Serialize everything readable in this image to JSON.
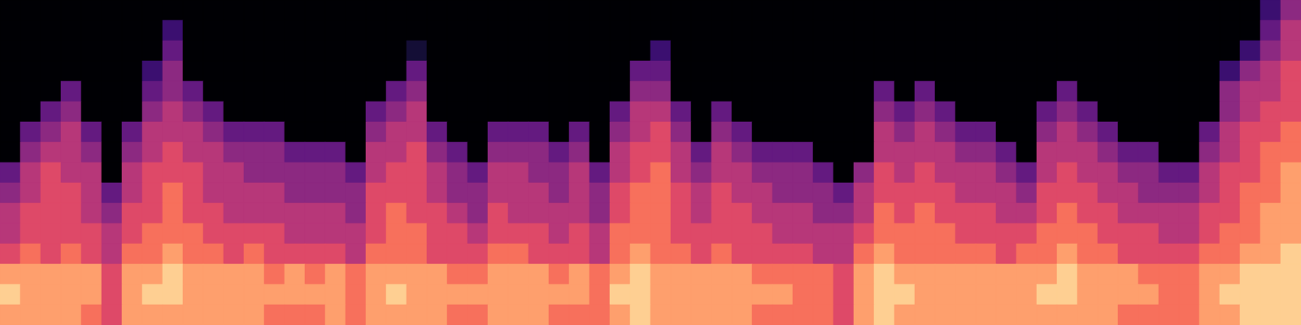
{
  "chart_data": {
    "type": "heatmap",
    "color": "magma",
    "color_range": [
      0,
      10
    ],
    "tick_labels": false,
    "cells": [
      [
        0,
        0,
        0,
        0,
        0,
        0,
        0,
        0,
        0,
        0,
        0,
        0,
        0,
        0,
        0,
        0,
        0,
        0,
        0,
        0,
        0,
        0,
        0,
        0,
        0,
        0,
        0,
        0,
        0,
        0,
        0,
        0,
        0,
        0,
        0,
        0,
        0,
        0,
        0,
        0,
        0,
        0,
        0,
        0,
        0,
        0,
        0,
        0,
        0,
        0,
        0,
        0,
        0,
        0,
        0,
        0,
        0,
        0,
        0,
        0,
        0,
        0,
        2,
        4
      ],
      [
        0,
        0,
        0,
        0,
        0,
        0,
        0,
        0,
        2,
        0,
        0,
        0,
        0,
        0,
        0,
        0,
        0,
        0,
        0,
        0,
        0,
        0,
        0,
        0,
        0,
        0,
        0,
        0,
        0,
        0,
        0,
        0,
        0,
        0,
        0,
        0,
        0,
        0,
        0,
        0,
        0,
        0,
        0,
        0,
        0,
        0,
        0,
        0,
        0,
        0,
        0,
        0,
        0,
        0,
        0,
        0,
        0,
        0,
        0,
        0,
        0,
        0,
        3,
        5
      ],
      [
        0,
        0,
        0,
        0,
        0,
        0,
        0,
        0,
        3,
        0,
        0,
        0,
        0,
        0,
        0,
        0,
        0,
        0,
        0,
        0,
        1,
        0,
        0,
        0,
        0,
        0,
        0,
        0,
        0,
        0,
        0,
        0,
        2,
        0,
        0,
        0,
        0,
        0,
        0,
        0,
        0,
        0,
        0,
        0,
        0,
        0,
        0,
        0,
        0,
        0,
        0,
        0,
        0,
        0,
        0,
        0,
        0,
        0,
        0,
        0,
        0,
        2,
        4,
        5
      ],
      [
        0,
        0,
        0,
        0,
        0,
        0,
        0,
        2,
        4,
        0,
        0,
        0,
        0,
        0,
        0,
        0,
        0,
        0,
        0,
        0,
        3,
        0,
        0,
        0,
        0,
        0,
        0,
        0,
        0,
        0,
        0,
        3,
        3,
        0,
        0,
        0,
        0,
        0,
        0,
        0,
        0,
        0,
        0,
        0,
        0,
        0,
        0,
        0,
        0,
        0,
        0,
        0,
        0,
        0,
        0,
        0,
        0,
        0,
        0,
        0,
        2,
        4,
        5,
        6
      ],
      [
        0,
        0,
        0,
        3,
        0,
        0,
        0,
        3,
        4,
        3,
        0,
        0,
        0,
        0,
        0,
        0,
        0,
        0,
        0,
        3,
        4,
        0,
        0,
        0,
        0,
        0,
        0,
        0,
        0,
        0,
        0,
        4,
        4,
        0,
        0,
        0,
        0,
        0,
        0,
        0,
        0,
        0,
        0,
        3,
        0,
        3,
        0,
        0,
        0,
        0,
        0,
        0,
        3,
        0,
        0,
        0,
        0,
        0,
        0,
        0,
        4,
        5,
        5,
        6
      ],
      [
        0,
        0,
        3,
        4,
        0,
        0,
        0,
        4,
        5,
        4,
        3,
        0,
        0,
        0,
        0,
        0,
        0,
        0,
        3,
        4,
        5,
        0,
        0,
        0,
        0,
        0,
        0,
        0,
        0,
        0,
        3,
        5,
        5,
        3,
        0,
        3,
        0,
        0,
        0,
        0,
        0,
        0,
        0,
        4,
        3,
        4,
        3,
        0,
        0,
        0,
        0,
        3,
        4,
        3,
        0,
        0,
        0,
        0,
        0,
        0,
        4,
        5,
        6,
        6
      ],
      [
        0,
        3,
        4,
        5,
        3,
        0,
        3,
        5,
        5,
        5,
        4,
        3,
        3,
        3,
        0,
        0,
        0,
        0,
        4,
        5,
        5,
        3,
        0,
        0,
        3,
        3,
        3,
        0,
        3,
        0,
        4,
        5,
        6,
        4,
        0,
        4,
        3,
        0,
        0,
        0,
        0,
        0,
        0,
        5,
        4,
        5,
        4,
        3,
        3,
        0,
        0,
        4,
        5,
        4,
        3,
        0,
        0,
        0,
        0,
        3,
        5,
        6,
        6,
        7
      ],
      [
        0,
        4,
        5,
        5,
        4,
        0,
        4,
        5,
        6,
        5,
        5,
        4,
        4,
        4,
        3,
        3,
        3,
        0,
        5,
        5,
        6,
        4,
        3,
        0,
        4,
        4,
        4,
        3,
        4,
        0,
        5,
        6,
        6,
        5,
        3,
        5,
        4,
        3,
        3,
        3,
        0,
        0,
        0,
        5,
        5,
        5,
        5,
        4,
        4,
        3,
        0,
        5,
        5,
        5,
        4,
        3,
        3,
        0,
        0,
        4,
        5,
        6,
        7,
        7
      ],
      [
        3,
        5,
        6,
        5,
        5,
        0,
        5,
        6,
        6,
        6,
        5,
        5,
        4,
        4,
        4,
        4,
        4,
        3,
        5,
        6,
        6,
        5,
        4,
        3,
        5,
        5,
        4,
        4,
        5,
        3,
        5,
        6,
        7,
        5,
        4,
        5,
        5,
        4,
        4,
        4,
        3,
        0,
        4,
        6,
        5,
        6,
        5,
        5,
        5,
        4,
        3,
        5,
        6,
        5,
        5,
        4,
        4,
        3,
        3,
        5,
        6,
        6,
        7,
        8
      ],
      [
        4,
        5,
        6,
        6,
        5,
        3,
        5,
        6,
        7,
        6,
        5,
        5,
        5,
        5,
        4,
        4,
        4,
        4,
        6,
        6,
        6,
        5,
        4,
        4,
        5,
        5,
        5,
        4,
        5,
        4,
        6,
        7,
        7,
        6,
        5,
        6,
        5,
        5,
        4,
        4,
        4,
        3,
        5,
        6,
        6,
        6,
        6,
        5,
        5,
        5,
        4,
        6,
        6,
        6,
        5,
        5,
        4,
        4,
        4,
        5,
        6,
        7,
        7,
        8
      ],
      [
        5,
        6,
        6,
        6,
        5,
        4,
        6,
        6,
        7,
        6,
        6,
        5,
        5,
        5,
        5,
        5,
        5,
        4,
        6,
        7,
        6,
        6,
        5,
        4,
        6,
        5,
        5,
        5,
        5,
        4,
        6,
        7,
        7,
        6,
        5,
        6,
        6,
        5,
        5,
        5,
        4,
        4,
        5,
        7,
        6,
        7,
        6,
        6,
        6,
        5,
        5,
        6,
        7,
        6,
        6,
        5,
        5,
        5,
        5,
        6,
        6,
        7,
        8,
        8
      ],
      [
        5,
        6,
        6,
        6,
        6,
        5,
        6,
        7,
        7,
        7,
        6,
        6,
        6,
        6,
        5,
        5,
        5,
        5,
        6,
        7,
        7,
        6,
        6,
        5,
        6,
        6,
        6,
        5,
        6,
        5,
        7,
        7,
        7,
        6,
        6,
        6,
        6,
        6,
        5,
        5,
        5,
        5,
        6,
        7,
        7,
        7,
        7,
        6,
        6,
        6,
        6,
        7,
        7,
        7,
        6,
        6,
        6,
        5,
        5,
        6,
        7,
        7,
        8,
        8
      ],
      [
        6,
        7,
        6,
        7,
        6,
        5,
        7,
        7,
        8,
        7,
        7,
        6,
        7,
        6,
        6,
        6,
        6,
        5,
        7,
        7,
        7,
        6,
        6,
        6,
        7,
        7,
        6,
        6,
        6,
        5,
        7,
        8,
        7,
        7,
        6,
        7,
        6,
        6,
        6,
        6,
        5,
        5,
        7,
        8,
        7,
        7,
        7,
        7,
        7,
        6,
        7,
        7,
        8,
        7,
        7,
        6,
        6,
        6,
        6,
        7,
        7,
        8,
        8,
        9
      ],
      [
        8,
        8,
        8,
        8,
        8,
        6,
        8,
        8,
        9,
        8,
        8,
        8,
        8,
        7,
        8,
        7,
        8,
        7,
        8,
        8,
        8,
        8,
        7,
        7,
        8,
        8,
        8,
        7,
        8,
        7,
        8,
        9,
        8,
        8,
        8,
        8,
        8,
        7,
        7,
        7,
        7,
        6,
        8,
        9,
        8,
        8,
        8,
        8,
        8,
        8,
        8,
        8,
        9,
        8,
        8,
        8,
        7,
        7,
        7,
        8,
        8,
        9,
        9,
        9
      ],
      [
        9,
        8,
        8,
        8,
        8,
        6,
        8,
        9,
        9,
        8,
        8,
        8,
        8,
        8,
        8,
        8,
        8,
        7,
        8,
        9,
        8,
        8,
        8,
        8,
        8,
        8,
        8,
        8,
        8,
        7,
        9,
        9,
        8,
        8,
        8,
        8,
        8,
        8,
        8,
        7,
        7,
        6,
        8,
        9,
        9,
        8,
        8,
        8,
        8,
        8,
        8,
        9,
        9,
        8,
        8,
        8,
        8,
        7,
        7,
        8,
        9,
        9,
        9,
        9
      ],
      [
        8,
        8,
        8,
        8,
        7,
        6,
        8,
        8,
        8,
        8,
        8,
        8,
        8,
        7,
        7,
        7,
        8,
        7,
        8,
        8,
        8,
        8,
        7,
        7,
        8,
        8,
        8,
        7,
        7,
        7,
        8,
        9,
        8,
        8,
        8,
        8,
        8,
        7,
        7,
        7,
        7,
        6,
        8,
        9,
        8,
        8,
        8,
        8,
        8,
        8,
        8,
        8,
        8,
        8,
        8,
        7,
        7,
        7,
        7,
        8,
        8,
        9,
        9,
        9
      ]
    ]
  }
}
